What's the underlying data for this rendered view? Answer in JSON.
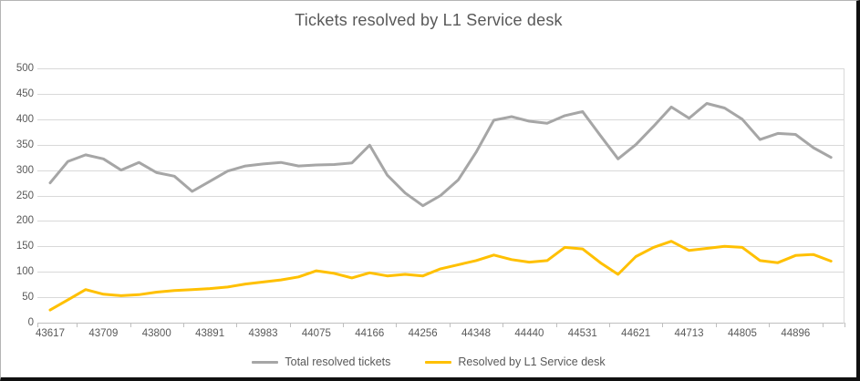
{
  "chart_data": {
    "type": "line",
    "title": "Tickets resolved by L1 Service desk",
    "xlabel": "",
    "ylabel": "",
    "ylim": [
      0,
      500
    ],
    "y_tick_step": 50,
    "grid": true,
    "legend_position": "bottom",
    "x_axis_note": "Excel date serials, monthly points Jun-2019 to Feb-2023, labels every 3 months",
    "x_tick_labels": [
      "43617",
      "43709",
      "43800",
      "43891",
      "43983",
      "44075",
      "44166",
      "44256",
      "44348",
      "44440",
      "44531",
      "44621",
      "44713",
      "44805",
      "44896"
    ],
    "x_label_every_n_points": 3,
    "series": [
      {
        "name": "Total resolved tickets",
        "color": "#a6a6a6",
        "values": [
          275,
          317,
          330,
          322,
          300,
          315,
          295,
          288,
          258,
          278,
          298,
          308,
          312,
          315,
          308,
          310,
          311,
          314,
          349,
          290,
          255,
          230,
          250,
          281,
          335,
          398,
          405,
          396,
          392,
          407,
          415,
          368,
          322,
          350,
          386,
          424,
          402,
          431,
          422,
          400,
          360,
          372,
          370,
          344,
          325
        ]
      },
      {
        "name": "Resolved by L1 Service desk",
        "color": "#ffc000",
        "values": [
          25,
          45,
          65,
          56,
          53,
          55,
          60,
          63,
          65,
          67,
          70,
          76,
          80,
          84,
          90,
          102,
          97,
          88,
          98,
          92,
          95,
          92,
          106,
          114,
          122,
          133,
          124,
          119,
          122,
          148,
          145,
          118,
          95,
          130,
          148,
          160,
          142,
          146,
          150,
          148,
          122,
          118,
          132,
          134,
          121
        ]
      }
    ]
  },
  "title": "Tickets resolved by L1 Service desk",
  "legend": {
    "items": [
      {
        "label": "Total resolved tickets",
        "color": "#a6a6a6"
      },
      {
        "label": "Resolved by L1 Service desk",
        "color": "#ffc000"
      }
    ]
  },
  "colors": {
    "gridline": "#d9d9d9",
    "axis_line": "#bfbfbf",
    "text": "#595959",
    "frame_dark": "#101010"
  }
}
